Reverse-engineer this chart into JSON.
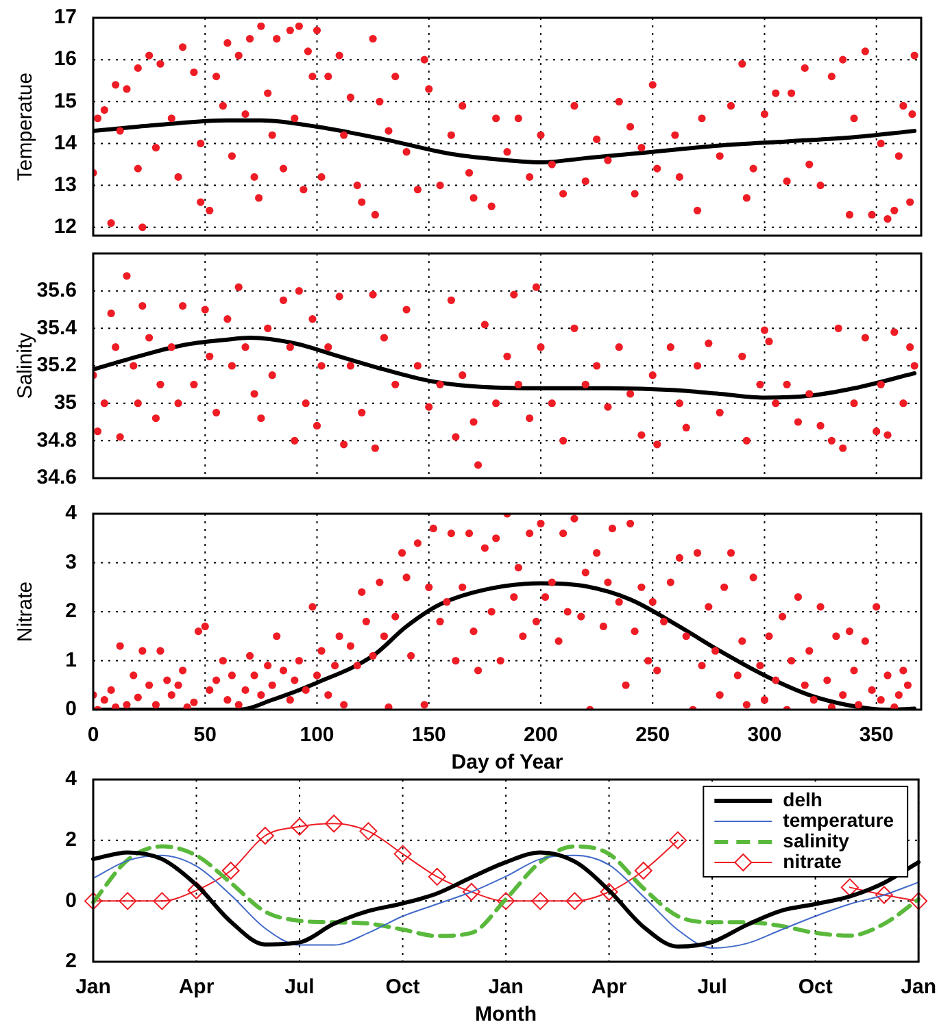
{
  "chart_data": [
    {
      "type": "scatter",
      "ylabel": "Temperatue",
      "xlim": [
        0,
        370
      ],
      "ylim": [
        11.8,
        17
      ],
      "xticks": [
        0,
        50,
        100,
        150,
        200,
        250,
        300,
        350
      ],
      "yticks": [
        12,
        13,
        14,
        15,
        16,
        17
      ],
      "tick_labels": "y",
      "grid": true,
      "marker": "circle",
      "series": [
        {
          "type": "scatter",
          "color": "#ee1c24",
          "x": [
            0,
            2,
            5,
            8,
            10,
            12,
            15,
            20,
            20,
            22,
            25,
            28,
            30,
            35,
            38,
            40,
            45,
            48,
            48,
            52,
            55,
            58,
            60,
            62,
            65,
            68,
            70,
            72,
            75,
            78,
            80,
            82,
            74,
            85,
            88,
            90,
            92,
            94,
            96,
            98,
            100,
            102,
            105,
            110,
            112,
            115,
            118,
            120,
            125,
            126,
            128,
            132,
            135,
            140,
            145,
            148,
            150,
            155,
            160,
            165,
            168,
            170,
            178,
            180,
            185,
            190,
            195,
            200,
            205,
            210,
            215,
            220,
            225,
            230,
            235,
            240,
            242,
            245,
            250,
            252,
            260,
            262,
            270,
            272,
            280,
            285,
            290,
            292,
            295,
            300,
            305,
            310,
            312,
            318,
            320,
            325,
            330,
            335,
            338,
            340,
            345,
            348,
            352,
            355,
            358,
            360,
            362,
            365,
            367,
            366
          ],
          "values": [
            13.3,
            14.6,
            14.8,
            12.1,
            15.4,
            14.3,
            15.3,
            13.4,
            15.8,
            12.0,
            16.1,
            13.9,
            15.9,
            14.6,
            13.2,
            16.3,
            15.7,
            14.0,
            12.6,
            12.4,
            15.6,
            14.9,
            16.4,
            13.7,
            16.1,
            14.7,
            16.5,
            13.2,
            16.8,
            15.2,
            14.2,
            16.5,
            12.7,
            13.4,
            16.7,
            14.6,
            16.8,
            12.9,
            16.2,
            15.6,
            16.7,
            13.2,
            15.6,
            16.1,
            14.2,
            15.1,
            13.0,
            12.6,
            16.5,
            12.3,
            15.0,
            14.3,
            15.6,
            13.8,
            12.9,
            16.0,
            15.3,
            13.0,
            14.2,
            14.9,
            13.3,
            12.7,
            12.5,
            14.6,
            13.8,
            14.6,
            13.2,
            14.2,
            13.5,
            12.8,
            14.9,
            13.1,
            14.1,
            13.6,
            15.0,
            14.4,
            12.8,
            13.9,
            15.4,
            13.4,
            14.2,
            13.2,
            12.4,
            14.6,
            13.7,
            14.9,
            15.9,
            12.7,
            13.4,
            14.7,
            15.2,
            13.1,
            15.2,
            15.8,
            13.5,
            13.0,
            15.6,
            16.0,
            12.3,
            14.6,
            16.2,
            12.3,
            14.0,
            12.2,
            12.4,
            13.7,
            14.9,
            12.6,
            16.1,
            14.7
          ]
        },
        {
          "type": "line",
          "color": "#000000",
          "marker": "none",
          "x": [
            0,
            30,
            60,
            75,
            100,
            130,
            160,
            185,
            200,
            220,
            250,
            280,
            310,
            340,
            367
          ],
          "values": [
            14.3,
            14.45,
            14.55,
            14.55,
            14.4,
            14.1,
            13.75,
            13.6,
            13.55,
            13.65,
            13.8,
            13.95,
            14.05,
            14.15,
            14.3
          ]
        }
      ]
    },
    {
      "type": "scatter",
      "ylabel": "Salinity",
      "xlim": [
        0,
        370
      ],
      "ylim": [
        34.6,
        35.8
      ],
      "xticks": [
        0,
        50,
        100,
        150,
        200,
        250,
        300,
        350
      ],
      "yticks": [
        34.6,
        34.8,
        35,
        35.2,
        35.4,
        35.6
      ],
      "tick_labels": "y",
      "grid": true,
      "marker": "circle",
      "series": [
        {
          "type": "scatter",
          "color": "#ee1c24",
          "x": [
            0,
            2,
            5,
            8,
            10,
            12,
            15,
            18,
            20,
            22,
            25,
            28,
            30,
            35,
            38,
            40,
            45,
            50,
            52,
            55,
            60,
            62,
            65,
            68,
            72,
            75,
            78,
            80,
            85,
            88,
            90,
            92,
            95,
            98,
            100,
            102,
            105,
            110,
            112,
            115,
            120,
            125,
            126,
            130,
            135,
            140,
            145,
            150,
            155,
            160,
            162,
            165,
            170,
            172,
            175,
            180,
            185,
            190,
            195,
            188,
            198,
            200,
            205,
            210,
            215,
            220,
            225,
            230,
            235,
            240,
            245,
            250,
            252,
            258,
            262,
            265,
            270,
            275,
            280,
            290,
            292,
            298,
            300,
            305,
            302,
            310,
            315,
            320,
            325,
            330,
            333,
            335,
            340,
            345,
            350,
            352,
            355,
            358,
            362,
            365,
            367
          ],
          "values": [
            35.15,
            34.85,
            35.0,
            35.48,
            35.3,
            34.82,
            35.68,
            35.2,
            35.0,
            35.52,
            35.35,
            34.92,
            35.1,
            35.3,
            35.0,
            35.52,
            35.1,
            35.5,
            35.25,
            34.95,
            35.45,
            35.2,
            35.62,
            35.3,
            35.05,
            34.92,
            35.4,
            35.15,
            35.55,
            35.3,
            34.8,
            35.6,
            35.0,
            35.45,
            34.88,
            35.2,
            35.3,
            35.57,
            34.78,
            35.2,
            34.95,
            35.58,
            34.76,
            35.35,
            35.1,
            35.5,
            35.2,
            34.98,
            35.1,
            35.55,
            34.82,
            35.15,
            34.9,
            34.67,
            35.42,
            35.0,
            35.25,
            35.1,
            34.92,
            35.58,
            35.62,
            35.3,
            35.0,
            34.8,
            35.4,
            35.1,
            35.2,
            34.98,
            35.3,
            35.05,
            34.83,
            35.15,
            34.78,
            35.3,
            35.0,
            34.87,
            35.2,
            35.32,
            34.95,
            35.25,
            34.8,
            35.1,
            35.39,
            35.0,
            35.33,
            35.1,
            34.9,
            35.05,
            34.88,
            34.8,
            35.4,
            34.76,
            35.0,
            35.35,
            34.85,
            35.1,
            34.83,
            35.38,
            35.0,
            35.3,
            35.2
          ]
        },
        {
          "type": "line",
          "color": "#000000",
          "marker": "none",
          "x": [
            0,
            20,
            40,
            60,
            70,
            90,
            110,
            130,
            150,
            170,
            200,
            230,
            260,
            280,
            300,
            320,
            340,
            367
          ],
          "values": [
            35.18,
            35.25,
            35.31,
            35.34,
            35.35,
            35.32,
            35.25,
            35.18,
            35.12,
            35.09,
            35.08,
            35.08,
            35.07,
            35.05,
            35.03,
            35.04,
            35.08,
            35.16
          ]
        }
      ]
    },
    {
      "type": "scatter",
      "ylabel": "Nitrate",
      "xlabel": "Day of Year",
      "xlim": [
        0,
        370
      ],
      "ylim": [
        0,
        4
      ],
      "xticks": [
        0,
        50,
        100,
        150,
        200,
        250,
        300,
        350
      ],
      "yticks": [
        0,
        1,
        2,
        3,
        4
      ],
      "grid": true,
      "marker": "circle",
      "series": [
        {
          "type": "scatter",
          "color": "#ee1c24",
          "x": [
            0,
            2,
            5,
            8,
            10,
            12,
            15,
            18,
            20,
            22,
            25,
            28,
            30,
            33,
            35,
            38,
            40,
            42,
            45,
            47,
            50,
            52,
            55,
            58,
            60,
            62,
            65,
            68,
            70,
            72,
            75,
            78,
            80,
            82,
            85,
            88,
            90,
            92,
            95,
            98,
            100,
            102,
            105,
            108,
            110,
            112,
            115,
            118,
            120,
            122,
            125,
            128,
            130,
            132,
            135,
            138,
            140,
            142,
            145,
            148,
            150,
            152,
            155,
            158,
            160,
            162,
            165,
            168,
            170,
            172,
            175,
            178,
            180,
            182,
            185,
            188,
            190,
            192,
            195,
            198,
            200,
            202,
            205,
            208,
            210,
            212,
            215,
            218,
            220,
            222,
            225,
            228,
            230,
            232,
            235,
            238,
            240,
            242,
            245,
            248,
            250,
            252,
            255,
            258,
            262,
            265,
            268,
            270,
            272,
            275,
            278,
            280,
            282,
            285,
            288,
            290,
            292,
            295,
            298,
            300,
            302,
            305,
            308,
            310,
            312,
            315,
            318,
            320,
            322,
            325,
            328,
            330,
            332,
            335,
            338,
            340,
            342,
            345,
            348,
            350,
            352,
            355,
            358,
            360,
            362,
            364
          ],
          "values": [
            0.3,
            0,
            0.2,
            0.4,
            0.05,
            1.3,
            0.1,
            0.7,
            0.25,
            1.2,
            0.5,
            0.1,
            1.2,
            0.6,
            0.3,
            0.5,
            0.8,
            0.05,
            0.15,
            1.6,
            1.7,
            0.4,
            0.6,
            1.0,
            0.2,
            0.7,
            0.1,
            0.4,
            1.1,
            0.7,
            0.3,
            0.9,
            0.5,
            1.5,
            0.8,
            0.2,
            0.6,
            1.0,
            0.4,
            2.1,
            0.7,
            1.2,
            0.3,
            0.9,
            1.5,
            0.1,
            1.3,
            0.9,
            2.4,
            1.8,
            1.1,
            2.6,
            1.5,
            0.05,
            1.9,
            3.2,
            2.7,
            1.1,
            3.4,
            0.1,
            2.5,
            3.7,
            1.8,
            2.2,
            3.6,
            1.0,
            2.5,
            3.6,
            1.6,
            0.8,
            3.3,
            2.0,
            3.5,
            1.0,
            4.0,
            2.3,
            2.9,
            1.5,
            3.6,
            1.8,
            3.8,
            2.3,
            2.6,
            1.4,
            3.6,
            2.0,
            3.9,
            1.9,
            2.8,
            0,
            3.2,
            1.7,
            2.6,
            3.7,
            2.2,
            0.5,
            3.8,
            1.6,
            2.5,
            1.0,
            2.2,
            0.8,
            1.8,
            2.6,
            3.1,
            1.5,
            0,
            3.2,
            0.9,
            2.1,
            1.2,
            0.3,
            2.5,
            3.2,
            0.7,
            1.4,
            0.1,
            2.7,
            0.9,
            0.2,
            1.5,
            0.6,
            1.9,
            0,
            1.0,
            2.3,
            0.5,
            1.2,
            0.2,
            2.1,
            0.6,
            0.05,
            1.5,
            0.3,
            1.6,
            0.8,
            0.1,
            1.4,
            0.4,
            2.1,
            0.2,
            0.7,
            0.05,
            0.3,
            0.8,
            0.5
          ]
        },
        {
          "type": "line",
          "color": "#000000",
          "marker": "none",
          "x": [
            0,
            30,
            65,
            80,
            100,
            125,
            140,
            155,
            175,
            200,
            220,
            240,
            260,
            280,
            300,
            320,
            340,
            355,
            367
          ],
          "values": [
            0,
            0,
            0,
            0.2,
            0.55,
            1.1,
            1.7,
            2.15,
            2.45,
            2.58,
            2.52,
            2.25,
            1.75,
            1.2,
            0.7,
            0.3,
            0.07,
            0,
            0.02
          ]
        }
      ]
    },
    {
      "type": "line",
      "xlabel": "Month",
      "categories": [
        "Jan",
        null,
        null,
        "Apr",
        null,
        null,
        "Jul",
        null,
        null,
        "Oct",
        null,
        null,
        "Jan",
        null,
        null,
        "Apr",
        null,
        null,
        "Jul",
        null,
        null,
        "Oct",
        null,
        null,
        "Jan"
      ],
      "ylim": [
        -2,
        4
      ],
      "yticks": [
        {
          "value": -2,
          "label": "2"
        },
        0,
        2,
        4
      ],
      "grid": true,
      "legend": "top right",
      "series": [
        {
          "name": "delh",
          "color": "#000000",
          "marker": "none",
          "line_style": "solid",
          "values": [
            1.38,
            1.6,
            1.38,
            0.53,
            -0.68,
            -1.43,
            -1.36,
            -0.75,
            -0.33,
            -0.08,
            0.25,
            0.78,
            1.28,
            1.6,
            1.3,
            0.35,
            -0.85,
            -1.5,
            -1.35,
            -0.79,
            -0.32,
            -0.1,
            0.15,
            0.6,
            1.28
          ]
        },
        {
          "name": "temperature",
          "color": "#4169c8",
          "marker": "none",
          "line_style": "solid",
          "values": [
            0.75,
            1.33,
            1.5,
            1.15,
            0.2,
            -0.9,
            -1.45,
            -1.45,
            -1.05,
            -0.5,
            -0.1,
            0.3,
            0.81,
            1.38,
            1.5,
            1.19,
            0.15,
            -0.95,
            -1.55,
            -1.4,
            -0.95,
            -0.5,
            -0.1,
            0.2,
            0.62
          ]
        },
        {
          "name": "salinity",
          "color": "#5ab93c",
          "marker": "none",
          "line_style": "dashed",
          "values": [
            -0.04,
            1.35,
            1.8,
            1.5,
            0.6,
            -0.35,
            -0.65,
            -0.7,
            -0.74,
            -0.94,
            -1.15,
            -1.05,
            0.06,
            1.28,
            1.8,
            1.55,
            0.42,
            -0.5,
            -0.7,
            -0.7,
            -0.82,
            -1.05,
            -1.14,
            -0.75,
            0.06
          ]
        },
        {
          "name": "nitrate",
          "color": "#ee1c24",
          "marker": "diamond",
          "line_style": "solid",
          "values": [
            0,
            0,
            0,
            0.35,
            1.0,
            2.15,
            2.45,
            2.55,
            2.3,
            1.55,
            0.8,
            0.3,
            0,
            0,
            0,
            0.3,
            1.0,
            2.0,
            null,
            null,
            null,
            null,
            0.45,
            0.2,
            0
          ]
        }
      ]
    }
  ]
}
